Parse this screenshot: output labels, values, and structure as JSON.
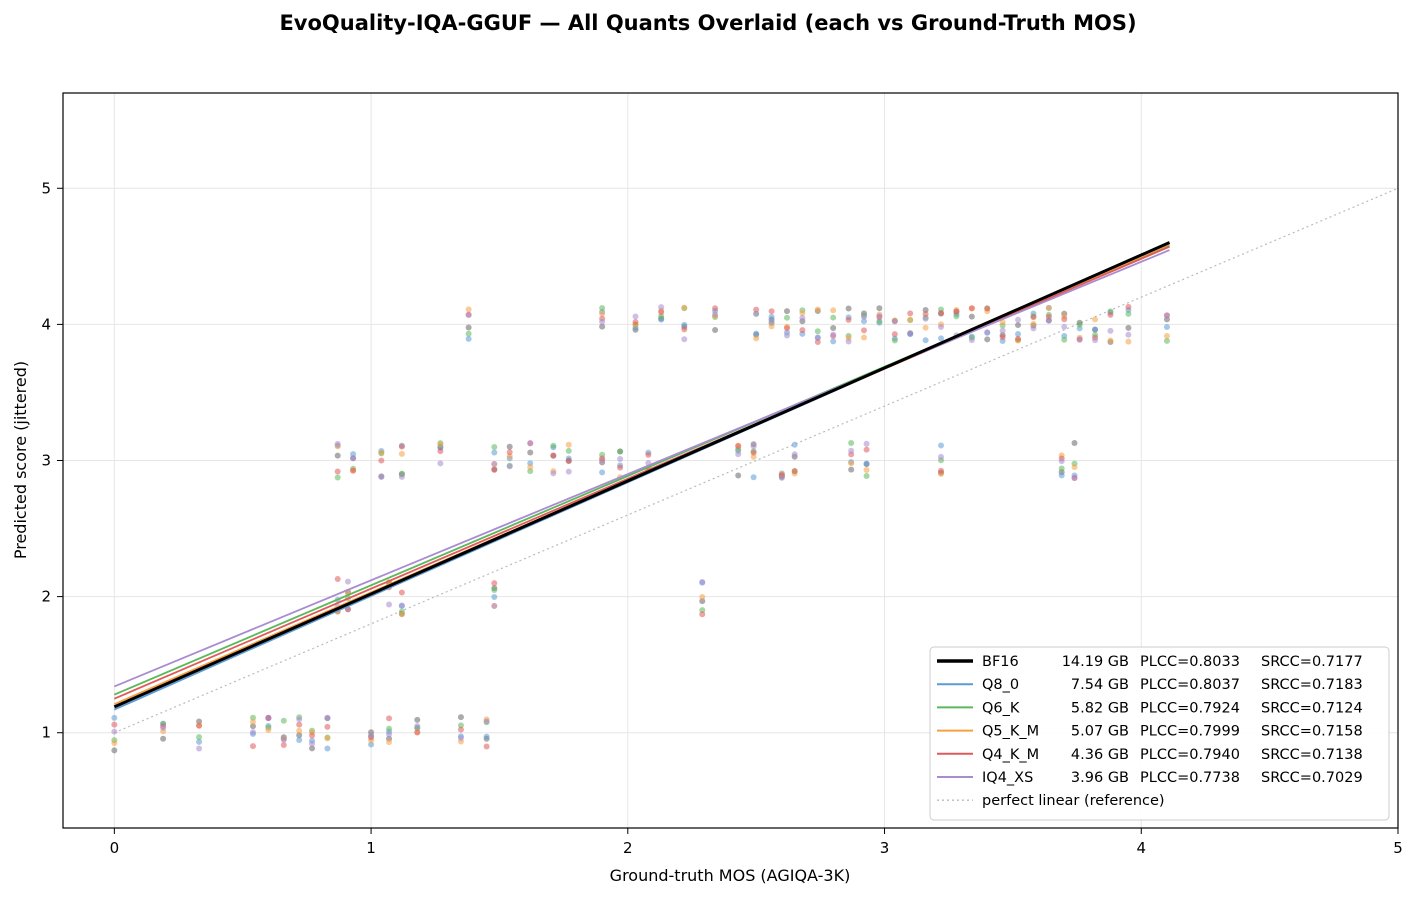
{
  "chart_data": {
    "type": "scatter",
    "title": "EvoQuality-IQA-GGUF — All Quants Overlaid (each vs Ground-Truth MOS)",
    "xlabel": "Ground-truth MOS (AGIQA-3K)",
    "ylabel": "Predicted score (jittered)",
    "xlim": [
      -0.2,
      5.0
    ],
    "ylim": [
      0.3,
      5.7
    ],
    "xticks": [
      "0",
      "1",
      "2",
      "3",
      "4",
      "5"
    ],
    "yticks": [
      "1",
      "2",
      "3",
      "4",
      "5"
    ],
    "grid": true,
    "legend_position": "lower-right",
    "series": [
      {
        "name": "BF16",
        "size_gb": "14.19 GB",
        "plcc": "PLCC=0.8033",
        "srcc": "SRCC=0.7177",
        "color": "#000000",
        "fit": {
          "intercept": 1.19,
          "slope": 0.83
        }
      },
      {
        "name": "Q8_0",
        "size_gb": "7.54 GB",
        "plcc": "PLCC=0.8037",
        "srcc": "SRCC=0.7183",
        "color": "#5b9bd5",
        "fit": {
          "intercept": 1.17,
          "slope": 0.835
        }
      },
      {
        "name": "Q6_K",
        "size_gb": "5.82 GB",
        "plcc": "PLCC=0.7924",
        "srcc": "SRCC=0.7124",
        "color": "#5cb85c",
        "fit": {
          "intercept": 1.28,
          "slope": 0.803
        }
      },
      {
        "name": "Q5_K_M",
        "size_gb": "5.07 GB",
        "plcc": "PLCC=0.7999",
        "srcc": "SRCC=0.7158",
        "color": "#f5a142",
        "fit": {
          "intercept": 1.21,
          "slope": 0.822
        }
      },
      {
        "name": "Q4_K_M",
        "size_gb": "4.36 GB",
        "plcc": "PLCC=0.7940",
        "srcc": "SRCC=0.7138",
        "color": "#e05a5a",
        "fit": {
          "intercept": 1.25,
          "slope": 0.808
        }
      },
      {
        "name": "IQ4_XS",
        "size_gb": "3.96 GB",
        "plcc": "PLCC=0.7738",
        "srcc": "SRCC=0.7029",
        "color": "#a98bd0",
        "fit": {
          "intercept": 1.34,
          "slope": 0.78
        }
      }
    ],
    "reference": {
      "name": "perfect linear (reference)",
      "color": "#bbbbbb",
      "intercept": 1.0,
      "slope": 0.8
    },
    "points": {
      "1": [
        0,
        0.19,
        0.33,
        0.54,
        0.6,
        0.66,
        0.72,
        0.77,
        0.83,
        1.0,
        1.07,
        1.18,
        1.35,
        1.45
      ],
      "2": [
        0.87,
        0.91,
        1.07,
        1.12,
        1.48,
        2.29
      ],
      "3": [
        0.87,
        0.93,
        1.04,
        1.12,
        1.27,
        1.48,
        1.54,
        1.62,
        1.71,
        1.77,
        1.9,
        1.97,
        2.08,
        2.43,
        2.49,
        2.6,
        2.65,
        2.87,
        2.93,
        3.22,
        3.69,
        3.74
      ],
      "4": [
        1.38,
        1.9,
        2.03,
        2.13,
        2.22,
        2.34,
        2.5,
        2.56,
        2.62,
        2.68,
        2.74,
        2.8,
        2.86,
        2.92,
        2.98,
        3.04,
        3.1,
        3.16,
        3.22,
        3.28,
        3.34,
        3.4,
        3.46,
        3.52,
        3.58,
        3.64,
        3.7,
        3.76,
        3.82,
        3.88,
        3.95,
        4.1
      ]
    }
  }
}
